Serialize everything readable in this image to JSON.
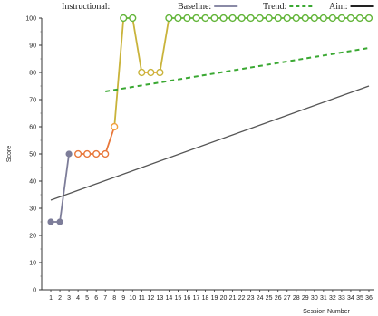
{
  "chart_data": {
    "type": "line",
    "title": "",
    "xlabel": "Session Number",
    "ylabel": "Score",
    "xlim": [
      0,
      36
    ],
    "ylim": [
      0,
      100
    ],
    "x_ticks": [
      1,
      2,
      3,
      4,
      5,
      6,
      7,
      8,
      9,
      10,
      11,
      12,
      13,
      14,
      15,
      16,
      17,
      18,
      19,
      20,
      21,
      22,
      23,
      24,
      25,
      26,
      27,
      28,
      29,
      30,
      31,
      32,
      33,
      34,
      35,
      36
    ],
    "y_ticks": [
      0,
      10,
      20,
      30,
      40,
      50,
      60,
      70,
      80,
      90,
      100
    ],
    "grid": false,
    "legend": {
      "placement": "top",
      "entries": [
        {
          "label": "Instructional:",
          "style": "gradient",
          "colors": [
            "#e8553a",
            "#f2a03c",
            "#63b53a"
          ]
        },
        {
          "label": "Baseline:",
          "style": "solid",
          "color": "#8a8aa6"
        },
        {
          "label": "Trend:",
          "style": "dashed",
          "color": "#3aa832"
        },
        {
          "label": "Aim:",
          "style": "solid",
          "color": "#222222"
        }
      ]
    },
    "series": [
      {
        "name": "Baseline",
        "color": "#7d7d99",
        "marker": "filled",
        "points": [
          [
            1,
            25
          ],
          [
            2,
            25
          ],
          [
            3,
            50
          ]
        ]
      },
      {
        "name": "Instructional",
        "marker": "open",
        "points": [
          [
            4,
            50
          ],
          [
            5,
            50
          ],
          [
            6,
            50
          ],
          [
            7,
            50
          ],
          [
            8,
            60
          ],
          [
            9,
            100
          ],
          [
            10,
            100
          ],
          [
            11,
            80
          ],
          [
            12,
            80
          ],
          [
            13,
            80
          ],
          [
            14,
            100
          ],
          [
            15,
            100
          ],
          [
            16,
            100
          ],
          [
            17,
            100
          ],
          [
            18,
            100
          ],
          [
            19,
            100
          ],
          [
            20,
            100
          ],
          [
            21,
            100
          ],
          [
            22,
            100
          ],
          [
            23,
            100
          ],
          [
            24,
            100
          ],
          [
            25,
            100
          ],
          [
            26,
            100
          ],
          [
            27,
            100
          ],
          [
            28,
            100
          ],
          [
            29,
            100
          ],
          [
            30,
            100
          ],
          [
            31,
            100
          ],
          [
            32,
            100
          ],
          [
            33,
            100
          ],
          [
            34,
            100
          ],
          [
            35,
            100
          ],
          [
            36,
            100
          ]
        ]
      },
      {
        "name": "Trend",
        "color": "#3aa832",
        "style": "dashed",
        "points": [
          [
            7,
            73
          ],
          [
            36,
            89
          ]
        ]
      },
      {
        "name": "Aim",
        "color": "#555555",
        "style": "solid",
        "points": [
          [
            1,
            33
          ],
          [
            36,
            75
          ]
        ]
      }
    ]
  }
}
